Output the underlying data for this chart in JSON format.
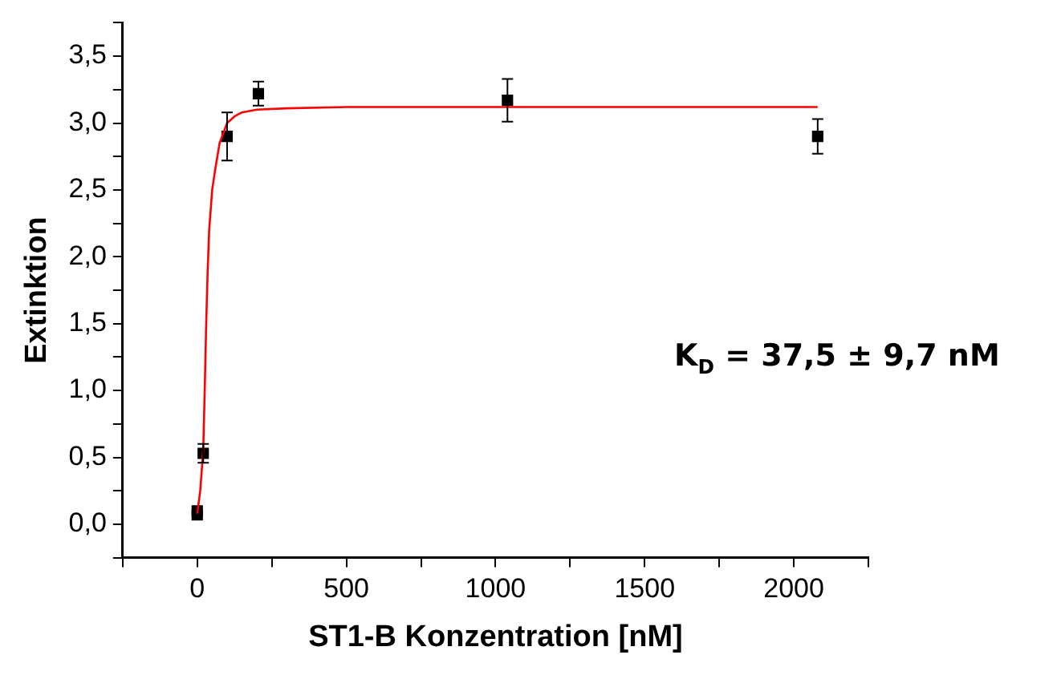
{
  "chart_data": {
    "type": "scatter",
    "xlabel": "ST1-B Konzentration [nM]",
    "ylabel": "Extinktion",
    "marker": "square",
    "grid": false,
    "legend": false,
    "xlim": [
      -250,
      2250
    ],
    "xticks": [
      {
        "value": -250,
        "label": null
      },
      0,
      {
        "value": 250,
        "label": null
      },
      500,
      {
        "value": 750,
        "label": null
      },
      1000,
      {
        "value": 1250,
        "label": null
      },
      1500,
      {
        "value": 1750,
        "label": null
      },
      2000,
      {
        "value": 2250,
        "label": null
      }
    ],
    "ylim": [
      -0.25,
      3.75
    ],
    "yticks": [
      {
        "value": -0.25,
        "label": null
      },
      {
        "value": 0,
        "label": "0,0"
      },
      {
        "value": 0.25,
        "label": null
      },
      {
        "value": 0.5,
        "label": "0,5"
      },
      {
        "value": 0.75,
        "label": null
      },
      {
        "value": 1,
        "label": "1,0"
      },
      {
        "value": 1.25,
        "label": null
      },
      {
        "value": 1.5,
        "label": "1,5"
      },
      {
        "value": 1.75,
        "label": null
      },
      {
        "value": 2,
        "label": "2,0"
      },
      {
        "value": 2.25,
        "label": null
      },
      {
        "value": 2.5,
        "label": "2,5"
      },
      {
        "value": 2.75,
        "label": null
      },
      {
        "value": 3,
        "label": "3,0"
      },
      {
        "value": 3.25,
        "label": null
      },
      {
        "value": 3.5,
        "label": "3,5"
      },
      {
        "value": 3.75,
        "label": null
      }
    ],
    "annotations": [
      "K$_{D}$ = 37,5 ± 9,7 nM"
    ],
    "series": [
      {
        "type": "line",
        "color": "#ff0000",
        "marker": "none",
        "x": [
          0,
          10,
          20,
          25,
          30,
          35,
          40,
          50,
          60,
          75,
          100,
          125,
          150,
          200,
          300,
          500,
          1000,
          2080
        ],
        "values": [
          0.08,
          0.25,
          0.55,
          1.0,
          1.5,
          1.9,
          2.2,
          2.5,
          2.65,
          2.85,
          3.0,
          3.05,
          3.08,
          3.1,
          3.11,
          3.12,
          3.12,
          3.12
        ]
      },
      {
        "color": "#000000",
        "x": [
          0,
          0,
          20,
          100,
          205,
          1040,
          2080
        ],
        "values": [
          0.07,
          0.1,
          0.53,
          2.9,
          3.22,
          3.17,
          2.9
        ],
        "errors": [
          null,
          null,
          0.07,
          0.18,
          0.09,
          0.16,
          0.13
        ]
      }
    ]
  }
}
